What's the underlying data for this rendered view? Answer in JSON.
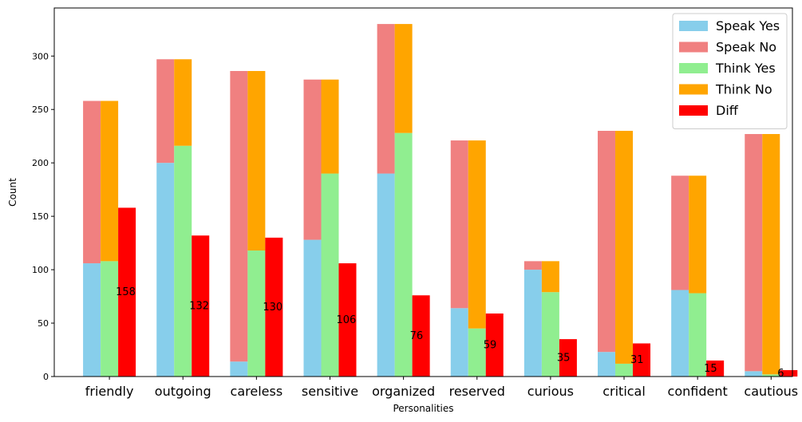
{
  "chart_data": {
    "type": "bar",
    "xlabel": "Personalities",
    "ylabel": "Count",
    "ylim": [
      0,
      345
    ],
    "yticks": [
      0,
      50,
      100,
      150,
      200,
      250,
      300
    ],
    "categories": [
      "friendly",
      "outgoing",
      "careless",
      "sensitive",
      "organized",
      "reserved",
      "curious",
      "critical",
      "confident",
      "cautious"
    ],
    "series": [
      {
        "name": "Speak Yes",
        "color": "#87CEEB",
        "stack": "speak",
        "values": [
          106,
          200,
          14,
          128,
          190,
          64,
          100,
          23,
          81,
          5
        ]
      },
      {
        "name": "Speak No",
        "color": "#F08080",
        "stack": "speak",
        "values": [
          152,
          97,
          272,
          150,
          140,
          157,
          8,
          207,
          107,
          222
        ]
      },
      {
        "name": "Think Yes",
        "color": "#90EE90",
        "stack": "think",
        "values": [
          108,
          216,
          118,
          190,
          228,
          45,
          79,
          12,
          78,
          2
        ]
      },
      {
        "name": "Think No",
        "color": "#FFA500",
        "stack": "think",
        "values": [
          150,
          81,
          168,
          88,
          102,
          176,
          29,
          218,
          110,
          225
        ]
      },
      {
        "name": "Diff",
        "color": "#FF0000",
        "stack": "diff",
        "values": [
          158,
          132,
          130,
          106,
          76,
          59,
          35,
          31,
          15,
          6
        ]
      }
    ],
    "data_labels": [
      "158",
      "132",
      "130",
      "106",
      "76",
      "59",
      "35",
      "31",
      "15",
      "6"
    ],
    "legend_position": "top-right",
    "grid": false
  }
}
